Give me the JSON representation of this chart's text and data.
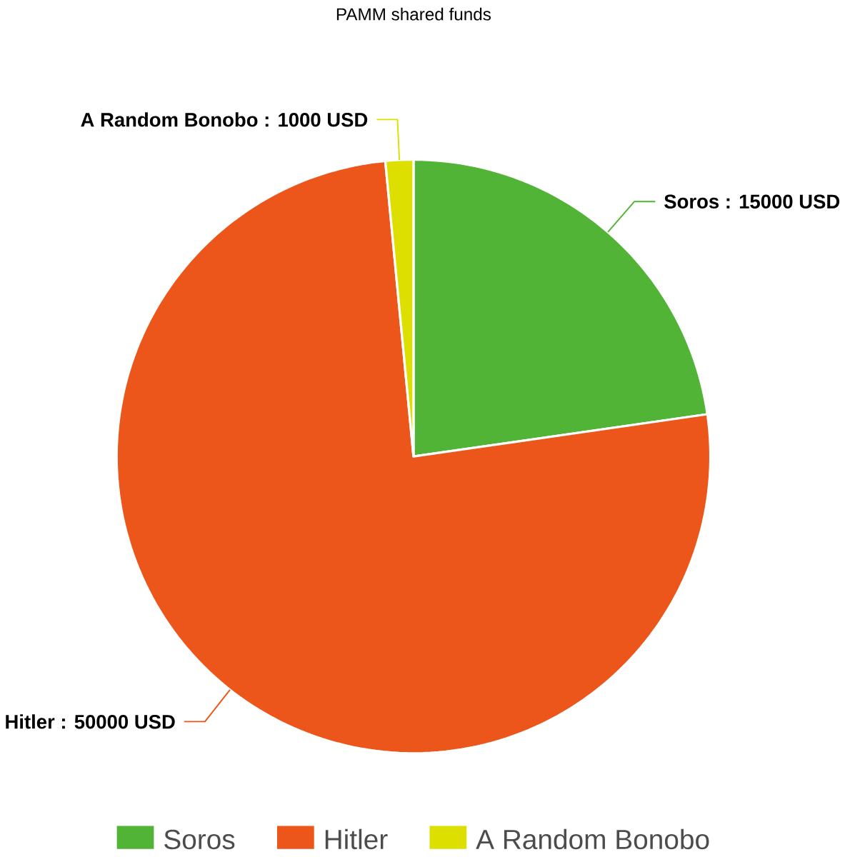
{
  "chart_data": {
    "type": "pie",
    "title": "PAMM shared funds",
    "categories": [
      "Soros",
      "Hitler",
      "A Random Bonobo"
    ],
    "values": [
      15000,
      50000,
      1000
    ],
    "colors": [
      "#52b436",
      "#ec561b",
      "#dddf00"
    ],
    "value_labels": [
      "Soros : 15000 USD",
      "Hitler : 50000 USD",
      "A Random Bonobo : 1000 USD"
    ],
    "legend": "bottom"
  }
}
